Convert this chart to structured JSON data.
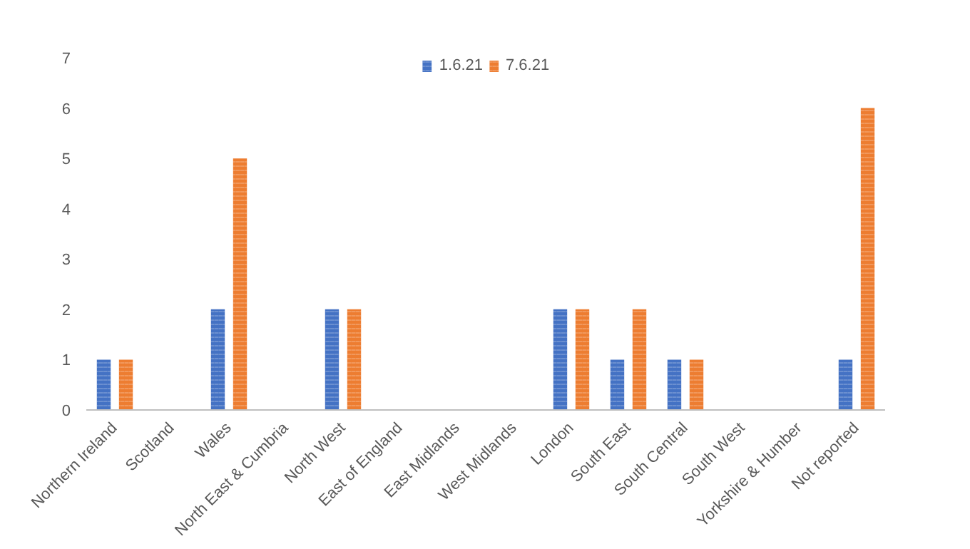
{
  "chart_data": {
    "type": "bar",
    "categories": [
      "Northern Ireland",
      "Scotland",
      "Wales",
      "North East & Cumbria",
      "North West",
      "East of England",
      "East Midlands",
      "West Midlands",
      "London",
      "South East",
      "South Central",
      "South West",
      "Yorkshire & Humber",
      "Not reported"
    ],
    "series": [
      {
        "name": "1.6.21",
        "color": "#4472c4",
        "values": [
          1,
          0,
          2,
          0,
          2,
          0,
          0,
          0,
          2,
          1,
          1,
          0,
          0,
          1
        ]
      },
      {
        "name": "7.6.21",
        "color": "#ed7d31",
        "values": [
          1,
          0,
          5,
          0,
          2,
          0,
          0,
          0,
          2,
          2,
          1,
          0,
          0,
          6
        ]
      }
    ],
    "ylim": [
      0,
      7
    ],
    "yticks": [
      0,
      1,
      2,
      3,
      4,
      5,
      6,
      7
    ],
    "grid": false,
    "legend": "top"
  }
}
